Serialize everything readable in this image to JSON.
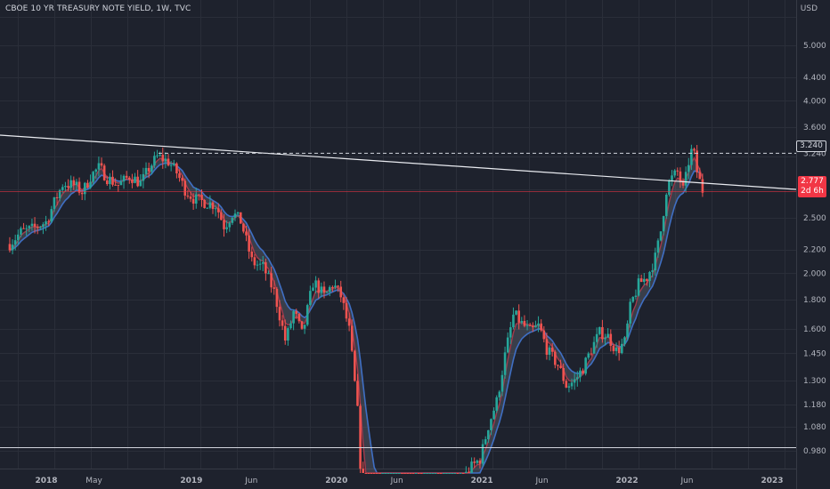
{
  "header": {
    "title": "CBOE 10 YR TREASURY NOTE YIELD, 1W, TVC",
    "unit": "USD"
  },
  "price_axis": {
    "ticks": [
      "5.000",
      "4.400",
      "4.000",
      "3.600",
      "3.240",
      "2.500",
      "2.200",
      "2.000",
      "1.800",
      "1.600",
      "1.450",
      "1.300",
      "1.180",
      "1.080",
      "0.980"
    ]
  },
  "last_price": {
    "value": "2.777",
    "countdown": "2d 6h",
    "color": "#f23645"
  },
  "level_marker": {
    "value": "3.240"
  },
  "chart_data": {
    "type": "candlestick",
    "title": "CBOE 10 YR TREASURY NOTE YIELD, 1W, TVC",
    "ylabel": "USD",
    "scale": "log",
    "ylim": [
      0.9,
      5.5
    ],
    "x_ticks": [
      {
        "label": "2018",
        "major": true,
        "date": "2018-01-01"
      },
      {
        "label": "May",
        "major": false,
        "date": "2018-05-01"
      },
      {
        "label": "2019",
        "major": true,
        "date": "2019-01-01"
      },
      {
        "label": "Jun",
        "major": false,
        "date": "2019-06-01"
      },
      {
        "label": "2020",
        "major": true,
        "date": "2020-01-01"
      },
      {
        "label": "Jun",
        "major": false,
        "date": "2020-06-01"
      },
      {
        "label": "2021",
        "major": true,
        "date": "2021-01-01"
      },
      {
        "label": "Jun",
        "major": false,
        "date": "2021-06-01"
      },
      {
        "label": "2022",
        "major": true,
        "date": "2022-01-01"
      },
      {
        "label": "Jun",
        "major": false,
        "date": "2022-06-01"
      },
      {
        "label": "2023",
        "major": true,
        "date": "2023-01-01"
      }
    ],
    "closes": [
      {
        "date": "2017-10-01",
        "close": 2.25
      },
      {
        "date": "2017-10-29",
        "close": 2.36
      },
      {
        "date": "2017-11-26",
        "close": 2.39
      },
      {
        "date": "2018-01-01",
        "close": 2.46
      },
      {
        "date": "2018-01-21",
        "close": 2.66
      },
      {
        "date": "2018-02-12",
        "close": 2.87
      },
      {
        "date": "2018-03-12",
        "close": 2.85
      },
      {
        "date": "2018-04-02",
        "close": 2.77
      },
      {
        "date": "2018-04-23",
        "close": 2.96
      },
      {
        "date": "2018-05-14",
        "close": 3.06
      },
      {
        "date": "2018-06-04",
        "close": 2.93
      },
      {
        "date": "2018-07-02",
        "close": 2.85
      },
      {
        "date": "2018-07-30",
        "close": 2.96
      },
      {
        "date": "2018-08-27",
        "close": 2.87
      },
      {
        "date": "2018-09-17",
        "close": 3.06
      },
      {
        "date": "2018-10-08",
        "close": 3.2
      },
      {
        "date": "2018-11-05",
        "close": 3.13
      },
      {
        "date": "2018-11-26",
        "close": 2.99
      },
      {
        "date": "2018-12-17",
        "close": 2.79
      },
      {
        "date": "2019-01-07",
        "close": 2.7
      },
      {
        "date": "2019-02-04",
        "close": 2.66
      },
      {
        "date": "2019-03-04",
        "close": 2.63
      },
      {
        "date": "2019-03-25",
        "close": 2.41
      },
      {
        "date": "2019-04-15",
        "close": 2.55
      },
      {
        "date": "2019-05-06",
        "close": 2.46
      },
      {
        "date": "2019-06-03",
        "close": 2.09
      },
      {
        "date": "2019-07-01",
        "close": 2.05
      },
      {
        "date": "2019-07-29",
        "close": 1.85
      },
      {
        "date": "2019-08-26",
        "close": 1.52
      },
      {
        "date": "2019-09-16",
        "close": 1.72
      },
      {
        "date": "2019-10-07",
        "close": 1.56
      },
      {
        "date": "2019-11-04",
        "close": 1.94
      },
      {
        "date": "2019-12-02",
        "close": 1.82
      },
      {
        "date": "2019-12-23",
        "close": 1.92
      },
      {
        "date": "2020-01-13",
        "close": 1.82
      },
      {
        "date": "2020-02-03",
        "close": 1.58
      },
      {
        "date": "2020-02-24",
        "close": 1.13
      },
      {
        "date": "2020-03-09",
        "close": 0.72
      },
      {
        "date": "2020-03-23",
        "close": 0.68
      },
      {
        "date": "2020-04-20",
        "close": 0.62
      },
      {
        "date": "2020-05-18",
        "close": 0.65
      },
      {
        "date": "2020-06-08",
        "close": 0.71
      },
      {
        "date": "2020-07-06",
        "close": 0.61
      },
      {
        "date": "2020-08-03",
        "close": 0.56
      },
      {
        "date": "2020-08-31",
        "close": 0.7
      },
      {
        "date": "2020-09-28",
        "close": 0.69
      },
      {
        "date": "2020-10-26",
        "close": 0.86
      },
      {
        "date": "2020-11-16",
        "close": 0.88
      },
      {
        "date": "2020-12-07",
        "close": 0.92
      },
      {
        "date": "2020-12-28",
        "close": 0.95
      },
      {
        "date": "2021-01-18",
        "close": 1.09
      },
      {
        "date": "2021-02-08",
        "close": 1.2
      },
      {
        "date": "2021-03-01",
        "close": 1.45
      },
      {
        "date": "2021-03-22",
        "close": 1.7
      },
      {
        "date": "2021-04-12",
        "close": 1.63
      },
      {
        "date": "2021-05-03",
        "close": 1.58
      },
      {
        "date": "2021-05-24",
        "close": 1.62
      },
      {
        "date": "2021-06-14",
        "close": 1.47
      },
      {
        "date": "2021-07-12",
        "close": 1.38
      },
      {
        "date": "2021-08-02",
        "close": 1.27
      },
      {
        "date": "2021-08-23",
        "close": 1.3
      },
      {
        "date": "2021-09-13",
        "close": 1.37
      },
      {
        "date": "2021-10-04",
        "close": 1.48
      },
      {
        "date": "2021-10-25",
        "close": 1.58
      },
      {
        "date": "2021-11-15",
        "close": 1.55
      },
      {
        "date": "2021-12-06",
        "close": 1.46
      },
      {
        "date": "2021-12-27",
        "close": 1.52
      },
      {
        "date": "2022-01-10",
        "close": 1.76
      },
      {
        "date": "2022-01-31",
        "close": 1.92
      },
      {
        "date": "2022-02-21",
        "close": 1.97
      },
      {
        "date": "2022-03-14",
        "close": 2.14
      },
      {
        "date": "2022-03-28",
        "close": 2.39
      },
      {
        "date": "2022-04-11",
        "close": 2.83
      },
      {
        "date": "2022-04-25",
        "close": 2.94
      },
      {
        "date": "2022-05-09",
        "close": 3.01
      },
      {
        "date": "2022-05-23",
        "close": 2.78
      },
      {
        "date": "2022-06-06",
        "close": 3.16
      },
      {
        "date": "2022-06-13",
        "close": 3.28
      },
      {
        "date": "2022-06-20",
        "close": 3.2
      },
      {
        "date": "2022-06-27",
        "close": 2.98
      },
      {
        "date": "2022-07-11",
        "close": 2.78
      }
    ]
  }
}
